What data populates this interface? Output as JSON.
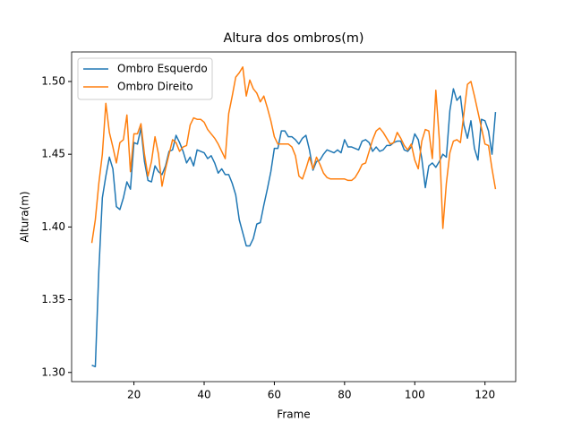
{
  "chart_data": {
    "type": "line",
    "title": "Altura dos ombros(m)",
    "xlabel": "Frame",
    "ylabel": "Altura(m)",
    "x": [
      8,
      9,
      10,
      11,
      12,
      13,
      14,
      15,
      16,
      17,
      18,
      19,
      20,
      21,
      22,
      23,
      24,
      25,
      26,
      27,
      28,
      29,
      30,
      31,
      32,
      33,
      34,
      35,
      36,
      37,
      38,
      39,
      40,
      41,
      42,
      43,
      44,
      45,
      46,
      47,
      48,
      49,
      50,
      51,
      52,
      53,
      54,
      55,
      56,
      57,
      58,
      59,
      60,
      61,
      62,
      63,
      64,
      65,
      66,
      67,
      68,
      69,
      70,
      71,
      72,
      73,
      74,
      75,
      76,
      77,
      78,
      79,
      80,
      81,
      82,
      83,
      84,
      85,
      86,
      87,
      88,
      89,
      90,
      91,
      92,
      93,
      94,
      95,
      96,
      97,
      98,
      99,
      100,
      101,
      102,
      103,
      104,
      105,
      106,
      107,
      108,
      109,
      110,
      111,
      112,
      113,
      114,
      115,
      116,
      117,
      118,
      119,
      120,
      121,
      122,
      123
    ],
    "series": [
      {
        "name": "Ombro Esquerdo",
        "color": "#1f77b4",
        "values": [
          1.305,
          1.304,
          1.37,
          1.42,
          1.435,
          1.448,
          1.44,
          1.414,
          1.412,
          1.42,
          1.431,
          1.426,
          1.458,
          1.457,
          1.468,
          1.445,
          1.432,
          1.431,
          1.442,
          1.438,
          1.436,
          1.442,
          1.452,
          1.453,
          1.463,
          1.458,
          1.452,
          1.444,
          1.448,
          1.442,
          1.453,
          1.452,
          1.451,
          1.447,
          1.449,
          1.444,
          1.437,
          1.44,
          1.436,
          1.436,
          1.43,
          1.422,
          1.405,
          1.396,
          1.387,
          1.387,
          1.392,
          1.402,
          1.403,
          1.415,
          1.426,
          1.438,
          1.454,
          1.454,
          1.466,
          1.466,
          1.462,
          1.462,
          1.46,
          1.457,
          1.461,
          1.463,
          1.453,
          1.439,
          1.445,
          1.446,
          1.45,
          1.453,
          1.452,
          1.451,
          1.453,
          1.451,
          1.46,
          1.455,
          1.455,
          1.454,
          1.453,
          1.459,
          1.46,
          1.458,
          1.452,
          1.455,
          1.452,
          1.453,
          1.456,
          1.456,
          1.458,
          1.459,
          1.459,
          1.453,
          1.452,
          1.455,
          1.464,
          1.46,
          1.447,
          1.427,
          1.442,
          1.444,
          1.441,
          1.445,
          1.45,
          1.448,
          1.48,
          1.495,
          1.487,
          1.49,
          1.47,
          1.461,
          1.473,
          1.454,
          1.446,
          1.474,
          1.473,
          1.466,
          1.45,
          1.479
        ]
      },
      {
        "name": "Ombro Direito",
        "color": "#ff7f0e",
        "values": [
          1.389,
          1.405,
          1.43,
          1.45,
          1.485,
          1.465,
          1.455,
          1.444,
          1.458,
          1.46,
          1.477,
          1.438,
          1.464,
          1.464,
          1.471,
          1.45,
          1.435,
          1.445,
          1.462,
          1.45,
          1.428,
          1.44,
          1.45,
          1.46,
          1.458,
          1.452,
          1.455,
          1.456,
          1.47,
          1.475,
          1.474,
          1.474,
          1.472,
          1.467,
          1.464,
          1.461,
          1.457,
          1.452,
          1.447,
          1.478,
          1.49,
          1.503,
          1.506,
          1.51,
          1.49,
          1.501,
          1.495,
          1.492,
          1.486,
          1.49,
          1.482,
          1.473,
          1.462,
          1.457,
          1.457,
          1.457,
          1.457,
          1.455,
          1.449,
          1.435,
          1.433,
          1.44,
          1.448,
          1.44,
          1.448,
          1.443,
          1.437,
          1.434,
          1.433,
          1.433,
          1.433,
          1.433,
          1.433,
          1.432,
          1.432,
          1.434,
          1.438,
          1.443,
          1.444,
          1.452,
          1.46,
          1.466,
          1.468,
          1.465,
          1.461,
          1.457,
          1.458,
          1.465,
          1.461,
          1.456,
          1.453,
          1.457,
          1.446,
          1.44,
          1.459,
          1.467,
          1.466,
          1.447,
          1.494,
          1.46,
          1.399,
          1.43,
          1.451,
          1.459,
          1.46,
          1.458,
          1.478,
          1.498,
          1.5,
          1.49,
          1.479,
          1.468,
          1.457,
          1.456,
          1.44,
          1.426
        ]
      }
    ],
    "xlim": [
      2.25,
      128.75
    ],
    "xticks": [
      20,
      40,
      60,
      80,
      100,
      120
    ],
    "ylim": [
      1.2937,
      1.5203
    ],
    "yticks": [
      {
        "value": 1.3,
        "label": "1.30"
      },
      1.35,
      {
        "value": 1.4,
        "label": "1.40"
      },
      1.45,
      {
        "value": 1.5,
        "label": "1.50"
      }
    ],
    "legend": "upper left"
  }
}
